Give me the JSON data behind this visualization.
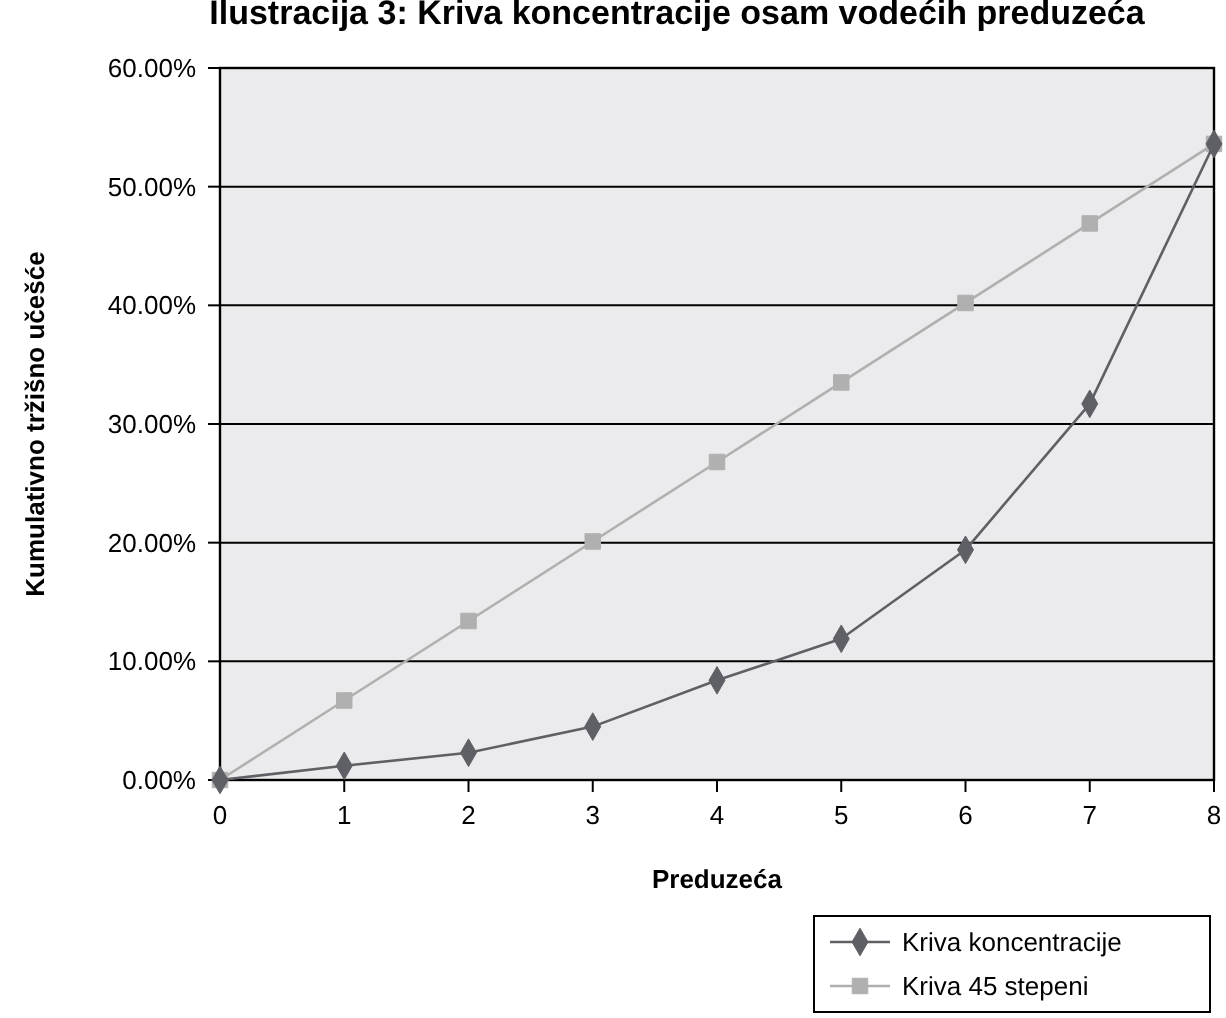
{
  "chart_data": {
    "type": "line",
    "title": "Ilustracija 3: Kriva koncentracije osam vodećih preduzeća",
    "xlabel": "Preduzeća",
    "ylabel": "Kumulativno tržišno učešće",
    "x": [
      0,
      1,
      2,
      3,
      4,
      5,
      6,
      7,
      8
    ],
    "series": [
      {
        "name": "Kriva koncentracije",
        "color": "#5f5f66",
        "marker": "diamond",
        "values": [
          0,
          1.2,
          2.3,
          4.5,
          8.4,
          11.9,
          19.4,
          31.7,
          53.6
        ]
      },
      {
        "name": "Kriva 45 stepeni",
        "color": "#b0b0b0",
        "marker": "square",
        "values": [
          0,
          6.7,
          13.4,
          20.1,
          26.8,
          33.5,
          40.2,
          46.9,
          53.6
        ]
      }
    ],
    "xlim": [
      0,
      8
    ],
    "xticks": [
      0,
      1,
      2,
      3,
      4,
      5,
      6,
      7,
      8
    ],
    "ylim": [
      0,
      60
    ],
    "yticks": [
      {
        "value": 0,
        "label": "0.00%"
      },
      {
        "value": 10,
        "label": "10.00%"
      },
      {
        "value": 20,
        "label": "20.00%"
      },
      {
        "value": 30,
        "label": "30.00%"
      },
      {
        "value": 40,
        "label": "40.00%"
      },
      {
        "value": 50,
        "label": "50.00%"
      },
      {
        "value": 60,
        "label": "60.00%"
      }
    ],
    "grid": "y",
    "legend": "bottom right"
  }
}
